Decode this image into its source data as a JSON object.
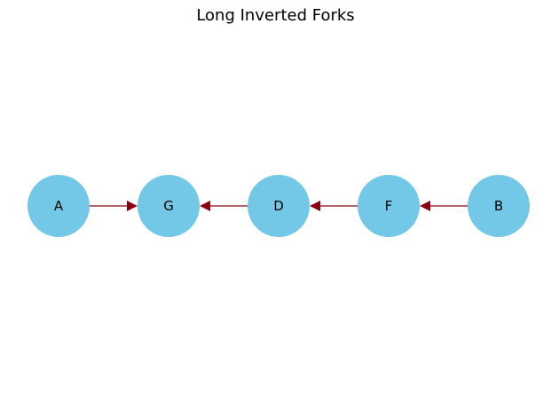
{
  "title": "Long Inverted Forks",
  "colors": {
    "node_fill": "#73c8e8",
    "edge": "#8b0010",
    "label": "#000000"
  },
  "nodes": [
    {
      "id": "A",
      "label": "A"
    },
    {
      "id": "G",
      "label": "G"
    },
    {
      "id": "D",
      "label": "D"
    },
    {
      "id": "F",
      "label": "F"
    },
    {
      "id": "B",
      "label": "B"
    }
  ],
  "edges": [
    {
      "from": "A",
      "to": "G"
    },
    {
      "from": "D",
      "to": "G"
    },
    {
      "from": "F",
      "to": "D"
    },
    {
      "from": "B",
      "to": "F"
    }
  ]
}
